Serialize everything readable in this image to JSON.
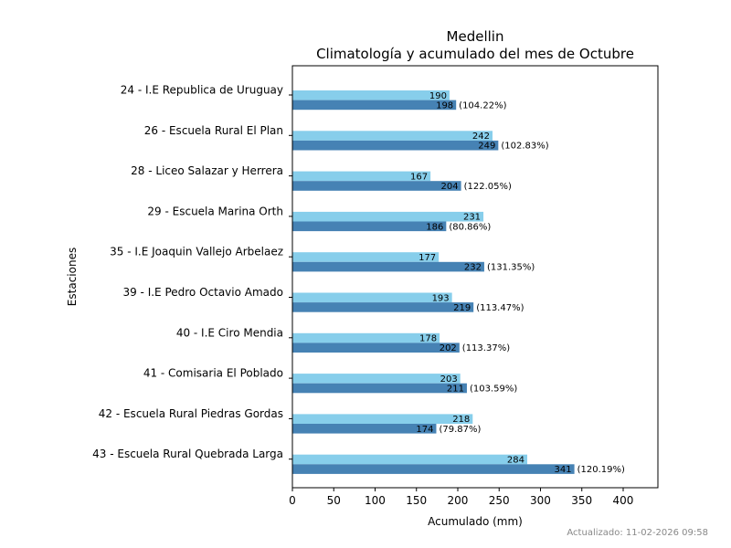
{
  "chart_data": {
    "type": "bar",
    "orientation": "horizontal",
    "title": "Medellin",
    "subtitle": "Climatología y acumulado del mes de Octubre",
    "xlabel": "Acumulado (mm)",
    "ylabel": "Estaciones",
    "xlim": [
      0,
      442
    ],
    "xticks": [
      0,
      50,
      100,
      150,
      200,
      250,
      300,
      350,
      400
    ],
    "grid": false,
    "categories": [
      "24 - I.E Republica de Uruguay",
      "26 - Escuela Rural El Plan",
      "28 - Liceo Salazar y Herrera",
      "29 - Escuela Marina Orth",
      "35 - I.E Joaquin Vallejo Arbelaez ",
      "39 - I.E Pedro Octavio Amado",
      "40 - I.E Ciro Mendia",
      "41 - Comisaria El Poblado",
      "42 - Escuela Rural Piedras Gordas",
      "43 - Escuela Rural Quebrada Larga"
    ],
    "series": [
      {
        "values": [
          190,
          242,
          167,
          231,
          177,
          193,
          178,
          203,
          218,
          284
        ],
        "color": "#87ceeb"
      },
      {
        "values": [
          198,
          249,
          204,
          186,
          232,
          219,
          202,
          211,
          174,
          341
        ],
        "color": "#4682b4",
        "percent_labels": [
          "(104.22%)",
          "(102.83%)",
          "(122.05%)",
          "(80.86%)",
          "(131.35%)",
          "(113.47%)",
          "(113.37%)",
          "(103.59%)",
          "(79.87%)",
          "(120.19%)"
        ]
      }
    ]
  },
  "footer": {
    "updated_text": "Actualizado: 11-02-2026 09:58"
  }
}
